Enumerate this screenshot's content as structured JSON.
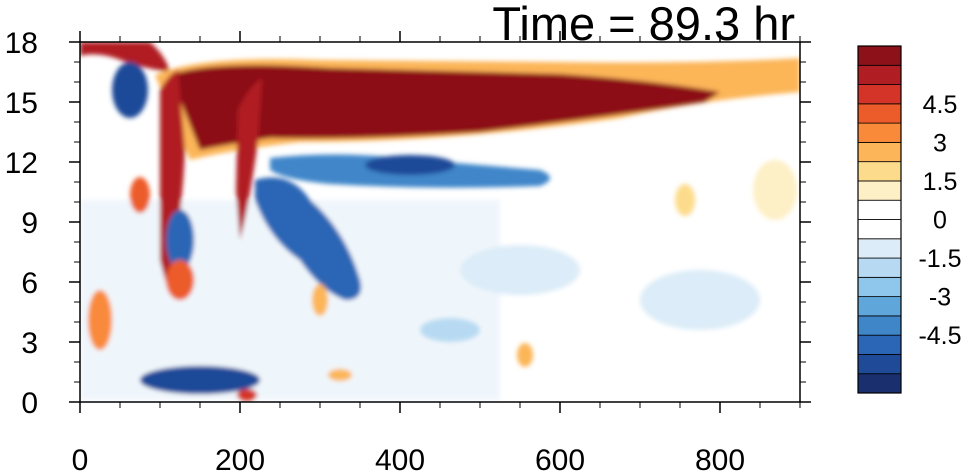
{
  "chart_data": {
    "type": "heatmap",
    "title": "Time = 89.3 hr",
    "xlabel": "",
    "ylabel": "",
    "xlim": [
      0,
      900
    ],
    "ylim": [
      0,
      18
    ],
    "x_ticks": [
      "0",
      "200",
      "400",
      "600",
      "800"
    ],
    "y_ticks": [
      "0",
      "3",
      "6",
      "9",
      "12",
      "15",
      "18"
    ],
    "colorbar": {
      "levels": [
        -6.0,
        -5.25,
        -4.5,
        -3.75,
        -3.0,
        -2.25,
        -1.5,
        -0.75,
        -0.25,
        0.25,
        0.75,
        1.5,
        2.25,
        3.0,
        3.75,
        4.5,
        5.25,
        6.0
      ],
      "labels": [
        "-4.5",
        "-3",
        "-1.5",
        "0",
        "1.5",
        "3",
        "4.5"
      ],
      "colors": [
        "#1a2f6e",
        "#1f4a98",
        "#2a66b5",
        "#3f86c9",
        "#5fa6da",
        "#8ec6ec",
        "#b7daf2",
        "#dcecf8",
        "#ffffff",
        "#ffffff",
        "#fdf0c6",
        "#fddb8c",
        "#fcb659",
        "#f98a3a",
        "#ec5b2a",
        "#d33427",
        "#b01e23",
        "#8c1119"
      ]
    },
    "features": [
      {
        "name": "upper-warm-band",
        "x": [
          110,
          830
        ],
        "y": [
          12.6,
          17.0
        ],
        "peak": 6.0
      },
      {
        "name": "vertical-warm-streak-1",
        "x": [
          105,
          125
        ],
        "y": [
          5,
          17
        ],
        "peak": 5.5
      },
      {
        "name": "vertical-warm-streak-2",
        "x": [
          200,
          225
        ],
        "y": [
          9,
          16
        ],
        "peak": 5.5
      },
      {
        "name": "cool-band-below",
        "x": [
          250,
          550
        ],
        "y": [
          10.5,
          12.0
        ],
        "peak": -5.0
      },
      {
        "name": "cool-blobs-lower",
        "x": [
          220,
          350
        ],
        "y": [
          4,
          10
        ],
        "peak": -4.5
      },
      {
        "name": "upper-left-warm",
        "x": [
          0,
          90
        ],
        "y": [
          16.5,
          18
        ],
        "peak": 5.0
      }
    ]
  }
}
